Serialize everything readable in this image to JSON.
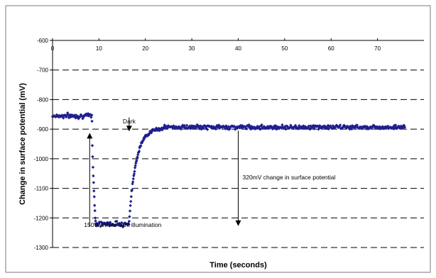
{
  "chart_data": {
    "type": "scatter",
    "title": "",
    "xlabel": "Time (seconds)",
    "ylabel": "Change in surface potential (mV)",
    "xlim": [
      0,
      80
    ],
    "ylim": [
      -1300,
      -600
    ],
    "y_inverted": true,
    "grid": "horizontal dashed",
    "x_ticks": [
      0,
      10,
      20,
      30,
      40,
      50,
      60,
      70
    ],
    "y_ticks": [
      -600,
      -700,
      -800,
      -900,
      -1000,
      -1100,
      -1200,
      -1300
    ],
    "marker_color": "#1f1f8f",
    "series": [
      {
        "values_note_segments": [
          {
            "x_range": [
              0,
              8.5
            ],
            "y_mean": -855,
            "y_noise": 12
          },
          {
            "x_range": [
              8.5,
              9.3
            ],
            "transition_to": -1220
          },
          {
            "x_range": [
              9.3,
              16.5
            ],
            "y_mean": -1220,
            "y_noise": 12
          },
          {
            "x_range": [
              16.5,
              24
            ],
            "recovery_to": -895
          },
          {
            "x_range": [
              24,
              76
            ],
            "y_mean": -893,
            "y_noise": 10
          }
        ]
      }
    ],
    "annotations": [
      {
        "text": "Dark",
        "x": 16.5,
        "y": -880
      },
      {
        "text": "150W White light illumination",
        "x": 8,
        "y": -1230
      },
      {
        "text": "320mV change in surface potential",
        "x": 40,
        "y": -1070
      }
    ],
    "arrows": [
      {
        "name": "dark-arrow",
        "from": [
          16.5,
          -860
        ],
        "to": [
          16.5,
          -905
        ]
      },
      {
        "name": "illumination-arrow",
        "from": [
          8,
          -1230
        ],
        "to": [
          8,
          -915
        ]
      },
      {
        "name": "change-arrow",
        "from": [
          40,
          -905
        ],
        "to": [
          40,
          -1225
        ]
      }
    ]
  }
}
